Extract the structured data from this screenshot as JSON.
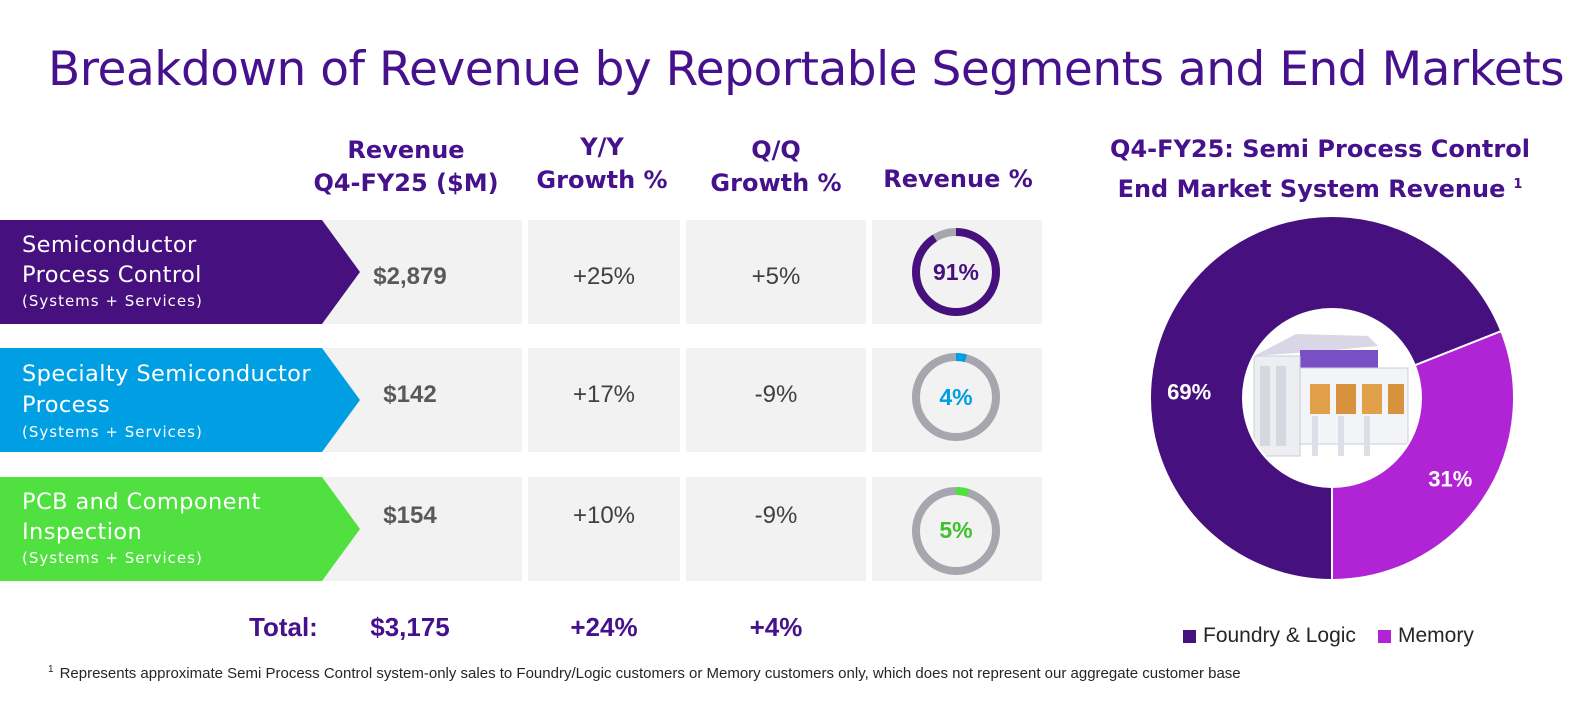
{
  "title": "Breakdown of Revenue by Reportable Segments and End Markets",
  "table": {
    "headers": {
      "revenue": [
        "Revenue",
        "Q4-FY25 ($M)"
      ],
      "yy": [
        "Y/Y",
        "Growth %"
      ],
      "qq": [
        "Q/Q",
        "Growth %"
      ],
      "share": "Revenue %"
    },
    "rows": [
      {
        "name_line1": "Semiconductor",
        "name_line2": "Process Control",
        "sub": "(Systems + Services)",
        "revenue": "$2,879",
        "yy": "+25%",
        "qq": "+5%",
        "share_label": "91%",
        "share_value": 91,
        "color": "#46117f",
        "ring_color": "#46117f",
        "label_color": "#46117f"
      },
      {
        "name_line1": "Specialty Semiconductor",
        "name_line2": "Process",
        "sub": "(Systems + Services)",
        "revenue": "$142",
        "yy": "+17%",
        "qq": "-9%",
        "share_label": "4%",
        "share_value": 4,
        "color": "#009fe3",
        "ring_color": "#009fe3",
        "label_color": "#009fe3"
      },
      {
        "name_line1": "PCB and Component",
        "name_line2": "Inspection",
        "sub": "(Systems + Services)",
        "revenue": "$154",
        "yy": "+10%",
        "qq": "-9%",
        "share_label": "5%",
        "share_value": 5,
        "color": "#50e040",
        "ring_color": "#50e040",
        "label_color": "#3fc12f"
      }
    ],
    "total": {
      "label": "Total:",
      "revenue": "$3,175",
      "yy": "+24%",
      "qq": "+4%"
    }
  },
  "chart_data": {
    "type": "pie",
    "title_line1": "Q4-FY25: Semi Process Control",
    "title_line2": "End Market System Revenue",
    "title_superscript": "1",
    "categories": [
      "Foundry & Logic",
      "Memory"
    ],
    "values": [
      69,
      31
    ],
    "labels": [
      "69%",
      "31%"
    ],
    "colors": [
      "#46117f",
      "#b024d6"
    ],
    "legend_position": "bottom"
  },
  "footnote": {
    "marker": "1",
    "text": "Represents approximate Semi Process Control system-only sales to Foundry/Logic customers or Memory customers only, which does not represent our aggregate customer base"
  }
}
